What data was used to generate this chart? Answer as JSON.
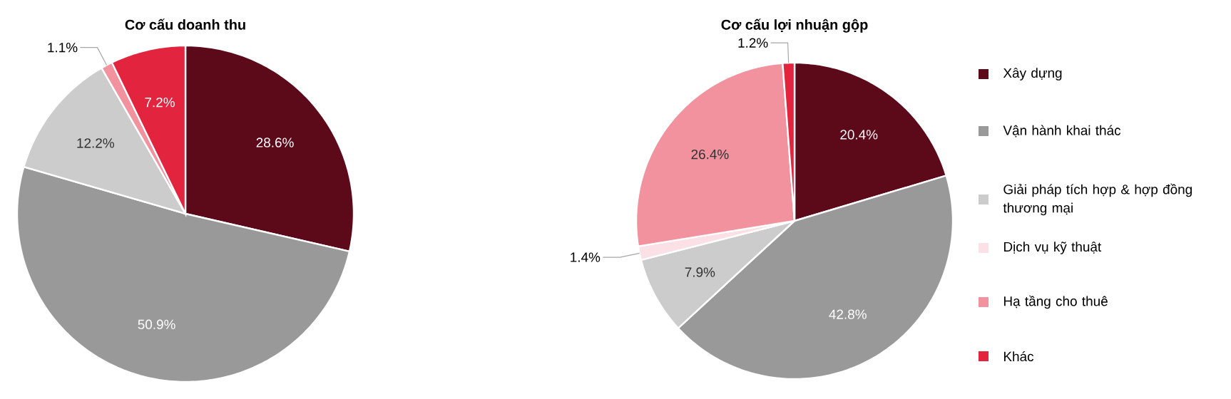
{
  "chart_data": [
    {
      "type": "pie",
      "title": "Cơ cấu doanh thu",
      "categories": [
        null,
        null,
        null,
        null,
        null
      ],
      "values": [
        28.6,
        50.9,
        12.2,
        1.1,
        7.2
      ],
      "colors": [
        "#5c0a1a",
        "#999999",
        "#cccccc",
        "#f2929f",
        "#e3243f"
      ],
      "value_labels": [
        "28.6%",
        "50.9%",
        "12.2%",
        "1.1%",
        "7.2%"
      ],
      "legend": false
    },
    {
      "type": "pie",
      "title": "Cơ cấu lợi nhuận gộp",
      "categories": [
        "Xây dựng",
        "Vận hành khai thác",
        "Giải pháp tích hợp & hợp đồng thương mại",
        "Dịch vụ kỹ thuật",
        "Hạ tầng cho thuê",
        "Khác"
      ],
      "values": [
        20.4,
        42.8,
        7.9,
        1.4,
        26.4,
        1.2
      ],
      "colors": [
        "#5c0a1a",
        "#999999",
        "#cccccc",
        "#fbe0e6",
        "#f2929f",
        "#e3243f"
      ],
      "value_labels": [
        "20.4%",
        "42.8%",
        "7.9%",
        "1.4%",
        "26.4%",
        "1.2%"
      ],
      "legend": "right"
    }
  ]
}
